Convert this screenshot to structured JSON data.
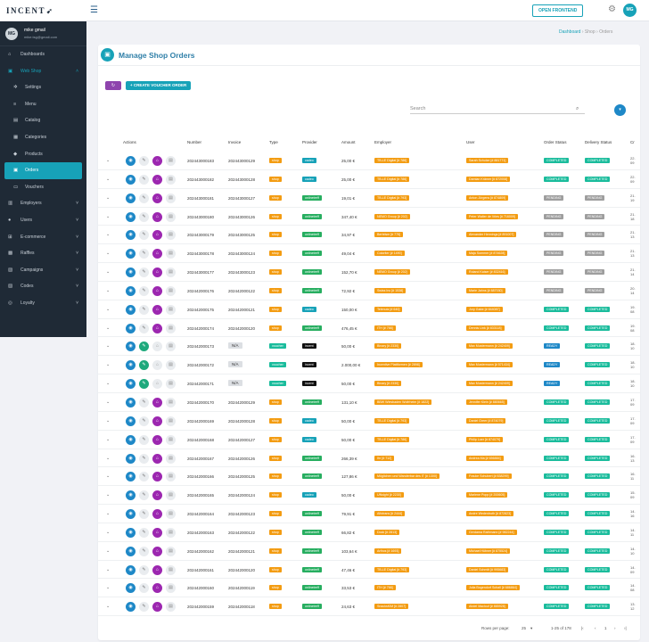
{
  "topbar": {
    "logo_text": "INCENT",
    "open_frontend_label": "OPEN FRONTEND",
    "avatar_initials": "MG"
  },
  "sidebar": {
    "user": {
      "initials": "MG",
      "name": "mike gmail",
      "email": "mike.tsg@gmail.com"
    },
    "items": [
      {
        "label": "Dashboards",
        "icon": "home-icon",
        "glyph": "⌂",
        "type": "item"
      },
      {
        "label": "Web Shop",
        "icon": "cart-icon",
        "glyph": "▣",
        "type": "open",
        "chevron": "˄"
      },
      {
        "label": "Settings",
        "icon": "gear-icon",
        "glyph": "✲",
        "type": "sub"
      },
      {
        "label": "Menu",
        "icon": "list-icon",
        "glyph": "≡",
        "type": "sub"
      },
      {
        "label": "Catalog",
        "icon": "catalog-icon",
        "glyph": "▤",
        "type": "sub"
      },
      {
        "label": "Categories",
        "icon": "tags-icon",
        "glyph": "▦",
        "type": "sub"
      },
      {
        "label": "Products",
        "icon": "tag-icon",
        "glyph": "◆",
        "type": "sub"
      },
      {
        "label": "Orders",
        "icon": "orders-icon",
        "glyph": "▣",
        "type": "active"
      },
      {
        "label": "Vouchers",
        "icon": "voucher-icon",
        "glyph": "▭",
        "type": "sub"
      },
      {
        "label": "Employers",
        "icon": "building-icon",
        "glyph": "▥",
        "type": "item",
        "chevron": "˅"
      },
      {
        "label": "Users",
        "icon": "users-icon",
        "glyph": "●",
        "type": "item",
        "chevron": "˅"
      },
      {
        "label": "E-commerce",
        "icon": "ecommerce-icon",
        "glyph": "⊞",
        "type": "item",
        "chevron": "˅"
      },
      {
        "label": "Raffles",
        "icon": "raffle-icon",
        "glyph": "▩",
        "type": "item",
        "chevron": "˅"
      },
      {
        "label": "Campaigns",
        "icon": "campaign-icon",
        "glyph": "▧",
        "type": "item",
        "chevron": "˅"
      },
      {
        "label": "Codes",
        "icon": "codes-icon",
        "glyph": "▨",
        "type": "item",
        "chevron": "˅"
      },
      {
        "label": "Loyalty",
        "icon": "loyalty-icon",
        "glyph": "◎",
        "type": "item",
        "chevron": "˅"
      }
    ]
  },
  "breadcrumb": {
    "items": [
      "Dashboard",
      "Shop",
      "Orders"
    ]
  },
  "page": {
    "title": "Manage Shop Orders",
    "refresh_glyph": "↻",
    "create_voucher_label": "+ CREATE VOUCHER ORDER",
    "search_placeholder": "Search",
    "filter_glyph": "▾"
  },
  "table": {
    "columns": [
      "Actions",
      "Number",
      "Invoice",
      "Type",
      "Provider",
      "Amount",
      "Employer",
      "User",
      "Order Status",
      "Delivery Status",
      "Cr"
    ],
    "rows": [
      {
        "number": "202443000183",
        "invoice": "202443000129",
        "type": "shop",
        "provider": "cadeo",
        "amount": "25,00 €",
        "employer": "TB-LE Digital [# 786]",
        "user": "Sarah Schulze [# 881771]",
        "ostatus": "COMPLETED",
        "dstatus": "COMPLETED",
        "created": "22.\n09"
      },
      {
        "number": "202443000182",
        "invoice": "202443000128",
        "type": "shop",
        "provider": "cadeo",
        "amount": "25,00 €",
        "employer": "TB-LE Digital [# 786]",
        "user": "Damian Krämer [# 872008]",
        "ostatus": "COMPLETED",
        "dstatus": "COMPLETED",
        "created": "22.\n09"
      },
      {
        "number": "202443000181",
        "invoice": "202443000127",
        "type": "shop",
        "provider": "onlinetreff",
        "amount": "19,01 €",
        "employer": "TB-LE Digital [# 793]",
        "user": "Anton Jürgens [# 874809]",
        "ostatus": "PENDING",
        "dstatus": "PENDING",
        "created": "21.\n19"
      },
      {
        "number": "202443000180",
        "invoice": "202443000126",
        "type": "shop",
        "provider": "onlinetreff",
        "amount": "347,40 €",
        "employer": "NEMO Group [# 202]",
        "user": "Peter Walter de Vries [# 716009]",
        "ostatus": "PENDING",
        "dstatus": "PENDING",
        "created": "21.\n18"
      },
      {
        "number": "202443000179",
        "invoice": "202443000125",
        "type": "shop",
        "provider": "onlinetreff",
        "amount": "34,97 €",
        "employer": "Bertelsm [# 775]",
        "user": "Alexander Hennings [# 891007]",
        "ostatus": "PENDING",
        "dstatus": "PENDING",
        "created": "21.\n13"
      },
      {
        "number": "202443000178",
        "invoice": "202443000124",
        "type": "shop",
        "provider": "onlinetreff",
        "amount": "49,04 €",
        "employer": "Coloriter [# 1490]",
        "user": "Maja Sommer [# 874628]",
        "ostatus": "PENDING",
        "dstatus": "PENDING",
        "created": "21.\n13"
      },
      {
        "number": "202443000177",
        "invoice": "202443000123",
        "type": "shop",
        "provider": "onlinetreff",
        "amount": "152,70 €",
        "employer": "NEMO Group [# 202]",
        "user": "Roland Kaiser [# 832416]",
        "ostatus": "PENDING",
        "dstatus": "PENDING",
        "created": "21.\n14"
      },
      {
        "number": "202442000176",
        "invoice": "202442000122",
        "type": "shop",
        "provider": "onlinetreff",
        "amount": "72,92 €",
        "employer": "Swiss Inc [# 1538]",
        "user": "Marie Jahns [# 887030]",
        "ostatus": "PENDING",
        "dstatus": "PENDING",
        "created": "20.\n14"
      },
      {
        "number": "202442000175",
        "invoice": "202442000121",
        "type": "shop",
        "provider": "cadeo",
        "amount": "150,00 €",
        "employer": "Telenutz [# 640]",
        "user": "Jury Gabe [# 844087]",
        "ostatus": "COMPLETED",
        "dstatus": "COMPLETED",
        "created": "19.\n08"
      },
      {
        "number": "202442000174",
        "invoice": "202442000120",
        "type": "shop",
        "provider": "onlinetreff",
        "amount": "476,45 €",
        "employer": "ITH [# 766]",
        "user": "Dennis Link [# 833118]",
        "ostatus": "COMPLETED",
        "dstatus": "COMPLETED",
        "created": "19.\n08"
      },
      {
        "number": "202442000173",
        "invoice": "N/A",
        "type": "voucher",
        "provider": "incent",
        "amount": "50,00 €",
        "employer": "Binary [# 2330]",
        "user": "Max Mustermann [# 242409]",
        "ostatus": "READY",
        "dstatus": "COMPLETED",
        "created": "18.\n10"
      },
      {
        "number": "202442000172",
        "invoice": "N/A",
        "type": "voucher",
        "provider": "incent",
        "amount": "2.000,00 €",
        "employer": "Incentive Plattformen [# 2898]",
        "user": "Max Mustermann [# 571434]",
        "ostatus": "READY",
        "dstatus": "COMPLETED",
        "created": "18.\n10"
      },
      {
        "number": "202442000171",
        "invoice": "N/A",
        "type": "voucher",
        "provider": "incent",
        "amount": "50,00 €",
        "employer": "Binary [# 2330]",
        "user": "Max Mustermann [# 242409]",
        "ostatus": "READY",
        "dstatus": "COMPLETED",
        "created": "18.\n10"
      },
      {
        "number": "202442000170",
        "invoice": "202442000129",
        "type": "shop",
        "provider": "onlinetreff",
        "amount": "131,10 €",
        "employer": "BBW Wiesbaden Wolfrheim [# 1822]",
        "user": "Jennifer Klein [# 880665]",
        "ostatus": "COMPLETED",
        "dstatus": "COMPLETED",
        "created": "17.\n09"
      },
      {
        "number": "202442000169",
        "invoice": "202442000128",
        "type": "shop",
        "provider": "cadeo",
        "amount": "50,00 €",
        "employer": "TB-LE Digital [# 793]",
        "user": "Daniel Greer [# 874079]",
        "ostatus": "COMPLETED",
        "dstatus": "COMPLETED",
        "created": "17.\n09"
      },
      {
        "number": "202442000168",
        "invoice": "202442000127",
        "type": "shop",
        "provider": "cadeo",
        "amount": "50,00 €",
        "employer": "TB-LE Digital [# 786]",
        "user": "Philip Loer [# 874079]",
        "ostatus": "COMPLETED",
        "dstatus": "COMPLETED",
        "created": "17.\n09"
      },
      {
        "number": "202442000167",
        "invoice": "202442000126",
        "type": "shop",
        "provider": "onlinetreff",
        "amount": "266,39 €",
        "employer": "Ihr [# 712]",
        "user": "Andrea Ma [# 656884]",
        "ostatus": "COMPLETED",
        "dstatus": "COMPLETED",
        "created": "16.\n13"
      },
      {
        "number": "202442000166",
        "invoice": "202442000125",
        "type": "shop",
        "provider": "onlinetreff",
        "amount": "127,86 €",
        "employer": "Möglichen und Wanderbar des IT [# 1300]",
        "user": "Frauke Schubert [# 838299]",
        "ostatus": "COMPLETED",
        "dstatus": "COMPLETED",
        "created": "16.\n11"
      },
      {
        "number": "202442000165",
        "invoice": "202442000124",
        "type": "shop",
        "provider": "cadeo",
        "amount": "50,00 €",
        "employer": "UNsight [# 2230]",
        "user": "Marlene Popp [# 200605]",
        "ostatus": "COMPLETED",
        "dstatus": "COMPLETED",
        "created": "15.\n09"
      },
      {
        "number": "202442000164",
        "invoice": "202442000123",
        "type": "shop",
        "provider": "onlinetreff",
        "amount": "79,91 €",
        "employer": "Alfotrans [# 2444]",
        "user": "Andre Wedentroth [# 872823]",
        "ostatus": "COMPLETED",
        "dstatus": "COMPLETED",
        "created": "14.\n16"
      },
      {
        "number": "202442000163",
        "invoice": "202442000122",
        "type": "shop",
        "provider": "onlinetreff",
        "amount": "66,82 €",
        "employer": "Dock [# 2813]",
        "user": "Gerdama Rathmann [# 982244]",
        "ostatus": "COMPLETED",
        "dstatus": "COMPLETED",
        "created": "14.\n11"
      },
      {
        "number": "202442000162",
        "invoice": "202442000121",
        "type": "shop",
        "provider": "onlinetreff",
        "amount": "103,64 €",
        "employer": "Arthos [# 1693]",
        "user": "Michael Hübner [# 875524]",
        "ostatus": "COMPLETED",
        "dstatus": "COMPLETED",
        "created": "14.\n10"
      },
      {
        "number": "202442000161",
        "invoice": "202442000120",
        "type": "shop",
        "provider": "onlinetreff",
        "amount": "47,46 €",
        "employer": "TB-LE Digital [# 793]",
        "user": "Daniel Schmitt [# 995683]",
        "ostatus": "COMPLETED",
        "dstatus": "COMPLETED",
        "created": "14.\n09"
      },
      {
        "number": "202442000160",
        "invoice": "202442000119",
        "type": "shop",
        "provider": "onlinetreff",
        "amount": "33,53 €",
        "employer": "ITH [# 766]",
        "user": "Julia Bogendorf Schall [# 686864]",
        "ostatus": "COMPLETED",
        "dstatus": "COMPLETED",
        "created": "14.\n08"
      },
      {
        "number": "202442000159",
        "invoice": "202442000118",
        "type": "shop",
        "provider": "onlinetreff",
        "amount": "24,63 €",
        "employer": "SnacksKIM [# 2807]",
        "user": "Abdel Maclouf [# 885928]",
        "ostatus": "COMPLETED",
        "dstatus": "COMPLETED",
        "created": "13.\n12"
      }
    ]
  },
  "pagination": {
    "rows_per_page_label": "Rows per page:",
    "rows_per_page_value": "25",
    "range_text": "1-25 of 178",
    "first_glyph": "|‹",
    "prev_glyph": "‹",
    "page_number": "1",
    "next_glyph": "›",
    "last_glyph": "›|"
  },
  "colors": {
    "accent": "#17a2b8",
    "sidebar_bg": "#1f2a36",
    "shop_badge": "#f39c12",
    "voucher_badge": "#1abc9c",
    "cadeo_badge": "#17a2b8",
    "onlinetreff_badge": "#27ae60",
    "incent_badge": "#111111",
    "employer_badge": "#f39c12",
    "user_badge": "#f39c12",
    "completed_badge": "#1abc9c",
    "pending_badge": "#9e9e9e",
    "ready_badge": "#1e88c7"
  }
}
